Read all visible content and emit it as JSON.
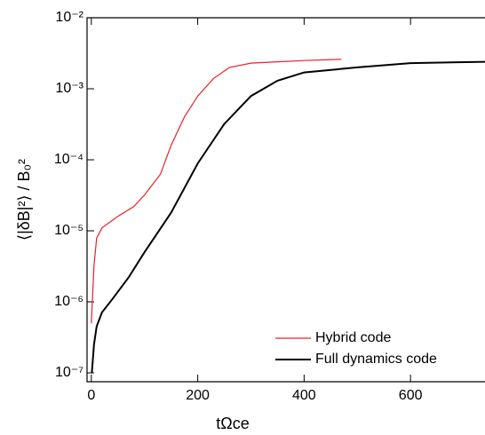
{
  "chart_data": {
    "type": "line",
    "x_label": "tΩce",
    "y_label": "⟨|δB|²⟩ / B₀²",
    "log_y": true,
    "legend": "lower right",
    "xlim": [
      -8,
      740
    ],
    "ylim": [
      7.5e-08,
      0.01
    ],
    "xticks": [
      0,
      200,
      400,
      600
    ],
    "yticks": [
      {
        "value": 1e-07,
        "label": "10⁻⁷"
      },
      {
        "value": 1e-06,
        "label": "10⁻⁶"
      },
      {
        "value": 1e-05,
        "label": "10⁻⁵"
      },
      {
        "value": 0.0001,
        "label": "10⁻⁴"
      },
      {
        "value": 0.001,
        "label": "10⁻³"
      },
      {
        "value": 0.01,
        "label": "10⁻²"
      }
    ],
    "series": [
      {
        "name": "Hybrid code",
        "color": "#e8212b",
        "x": [
          0,
          5,
          10,
          20,
          50,
          80,
          100,
          130,
          150,
          175,
          200,
          230,
          260,
          300,
          350,
          400,
          470
        ],
        "values": [
          5e-07,
          3.2e-06,
          7.9e-06,
          1.1e-05,
          1.6e-05,
          2.2e-05,
          3.2e-05,
          6.3e-05,
          0.00016,
          0.0004,
          0.00079,
          0.0014,
          0.002,
          0.0023,
          0.0024,
          0.0025,
          0.0026
        ]
      },
      {
        "name": "Full dynamics code",
        "color": "#000000",
        "x": [
          1,
          5,
          10,
          20,
          40,
          70,
          100,
          150,
          200,
          250,
          300,
          350,
          400,
          500,
          600,
          740
        ],
        "values": [
          1e-07,
          2.5e-07,
          4.5e-07,
          7.1e-07,
          1.1e-06,
          2.2e-06,
          5e-06,
          1.8e-05,
          8.9e-05,
          0.00032,
          0.00079,
          0.0013,
          0.0017,
          0.002,
          0.0023,
          0.0024
        ]
      }
    ]
  }
}
